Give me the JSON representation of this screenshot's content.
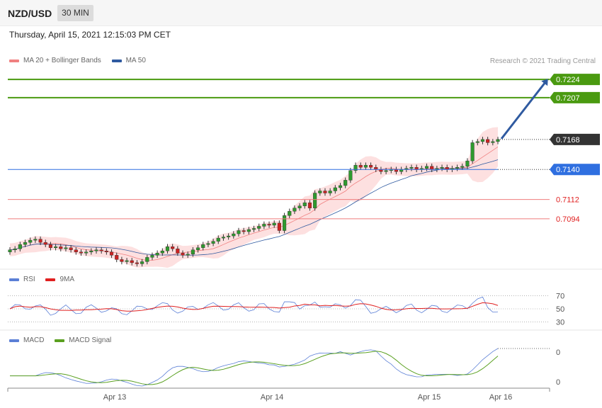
{
  "header": {
    "pair": "NZD/USD",
    "timeframe": "30 MIN",
    "datetime": "Thursday, April 15, 2021 12:15:03 PM CET"
  },
  "legends": {
    "price": [
      {
        "label": "MA 20 + Bollinger Bands",
        "color": "#f08080"
      },
      {
        "label": "MA 50",
        "color": "#2f5aa0"
      }
    ],
    "rsi": [
      {
        "label": "RSI",
        "color": "#5b7fd6"
      },
      {
        "label": "9MA",
        "color": "#e02020"
      }
    ],
    "macd": [
      {
        "label": "MACD",
        "color": "#5b7fd6"
      },
      {
        "label": "MACD Signal",
        "color": "#5aa020"
      }
    ]
  },
  "credit": "Research © 2021 Trading Central",
  "chart_data": {
    "type": "candlestick",
    "price_ylim": [
      0.7047,
      0.7232
    ],
    "levels": [
      {
        "value": 0.7224,
        "label": "0.7224",
        "kind": "target",
        "color": "#4a9a10"
      },
      {
        "value": 0.7207,
        "label": "0.7207",
        "kind": "target",
        "color": "#4a9a10"
      },
      {
        "value": 0.7168,
        "label": "0.7168",
        "kind": "last",
        "color": "#333333"
      },
      {
        "value": 0.714,
        "label": "0.7140",
        "kind": "pivot",
        "color": "#2f6fe0"
      },
      {
        "value": 0.7112,
        "label": "0.7112",
        "kind": "support",
        "color": "#e02020"
      },
      {
        "value": 0.7094,
        "label": "0.7094",
        "kind": "support",
        "color": "#e02020"
      }
    ],
    "forecast_arrow": {
      "from": 0.7168,
      "to": 0.7224
    },
    "closes": [
      0.7065,
      0.7066,
      0.707,
      0.7072,
      0.7074,
      0.7075,
      0.7072,
      0.707,
      0.7067,
      0.7068,
      0.7066,
      0.7067,
      0.7065,
      0.7063,
      0.7062,
      0.7063,
      0.7064,
      0.7065,
      0.7064,
      0.7063,
      0.706,
      0.7056,
      0.7054,
      0.7055,
      0.7053,
      0.7052,
      0.7054,
      0.7058,
      0.706,
      0.7062,
      0.7064,
      0.7068,
      0.7066,
      0.7062,
      0.706,
      0.7061,
      0.7065,
      0.7067,
      0.707,
      0.7071,
      0.7073,
      0.7076,
      0.7077,
      0.7078,
      0.708,
      0.7083,
      0.7082,
      0.7084,
      0.7085,
      0.7087,
      0.7089,
      0.7088,
      0.709,
      0.7083,
      0.7097,
      0.7101,
      0.7104,
      0.7106,
      0.7109,
      0.7104,
      0.7118,
      0.712,
      0.7118,
      0.712,
      0.7123,
      0.7125,
      0.713,
      0.7139,
      0.7144,
      0.7142,
      0.7144,
      0.7142,
      0.714,
      0.7138,
      0.7139,
      0.714,
      0.7138,
      0.714,
      0.7141,
      0.7142,
      0.714,
      0.7141,
      0.7143,
      0.714,
      0.7141,
      0.7142,
      0.714,
      0.7141,
      0.7142,
      0.7143,
      0.7148,
      0.7165,
      0.7166,
      0.7168,
      0.7165,
      0.7166,
      0.7168
    ],
    "rsi_ylim": [
      22,
      78
    ],
    "rsi_levels": [
      70,
      50,
      30
    ],
    "macd_levels": [
      {
        "label": "0",
        "y": 0.0012
      },
      {
        "label": "0",
        "y": -0.0003
      }
    ],
    "x_tick_labels": [
      "Apr 13",
      "Apr 14",
      "Apr 15",
      "Apr 16"
    ]
  }
}
